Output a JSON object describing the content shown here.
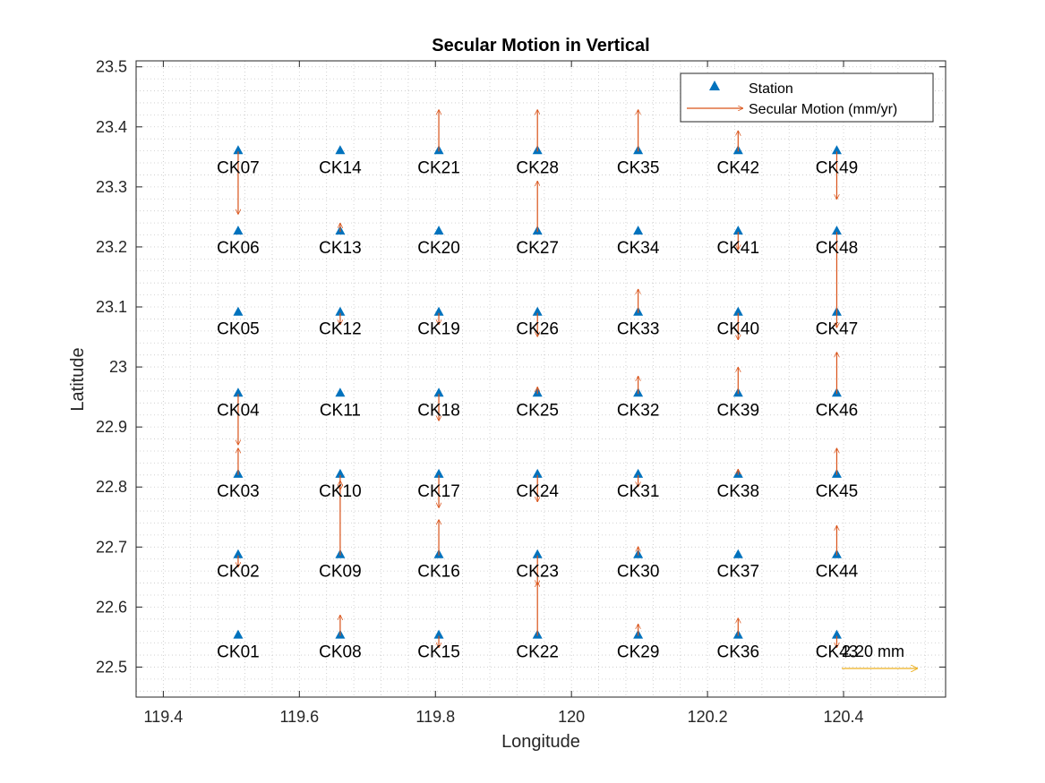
{
  "chart_data": {
    "type": "scatter",
    "title": "Secular Motion in Vertical",
    "xlabel": "Longitude",
    "ylabel": "Latitude",
    "xlim": [
      119.36,
      120.55
    ],
    "ylim": [
      22.45,
      23.51
    ],
    "xticks": [
      119.4,
      119.6,
      119.8,
      120,
      120.2,
      120.4
    ],
    "xtick_labels": [
      "119.4",
      "119.6",
      "119.8",
      "120",
      "120.2",
      "120.4"
    ],
    "yticks": [
      22.5,
      22.6,
      22.7,
      22.8,
      22.9,
      23,
      23.1,
      23.2,
      23.3,
      23.4,
      23.5
    ],
    "ytick_labels": [
      "22.5",
      "22.6",
      "22.7",
      "22.8",
      "22.9",
      "23",
      "23.1",
      "23.2",
      "23.3",
      "23.4",
      "23.5"
    ],
    "grid": "minor dotted",
    "legend": {
      "location": "top-right",
      "entries": [
        {
          "label": "Station",
          "marker": "triangle",
          "color": "#0072BD"
        },
        {
          "label": "Secular Motion (mm/yr)",
          "marker": "arrow",
          "color": "#D95319"
        }
      ]
    },
    "colors": {
      "station": "#0072BD",
      "arrow": "#D95319",
      "scale_arrow": "#EDB120"
    },
    "scale_arrow": {
      "label": "2.20 mm",
      "lon": 120.39,
      "lat": 22.45,
      "length_deg": 0.115
    },
    "stations": [
      {
        "name": "CK01",
        "lon": 119.51,
        "lat": 22.552,
        "dlat": 0
      },
      {
        "name": "CK02",
        "lon": 119.51,
        "lat": 22.686,
        "dlat": -0.02
      },
      {
        "name": "CK03",
        "lon": 119.51,
        "lat": 22.82,
        "dlat": 0.045
      },
      {
        "name": "CK04",
        "lon": 119.51,
        "lat": 22.955,
        "dlat": -0.085
      },
      {
        "name": "CK05",
        "lon": 119.51,
        "lat": 23.09,
        "dlat": 0
      },
      {
        "name": "CK06",
        "lon": 119.51,
        "lat": 23.225,
        "dlat": 0
      },
      {
        "name": "CK07",
        "lon": 119.51,
        "lat": 23.359,
        "dlat": -0.105
      },
      {
        "name": "CK08",
        "lon": 119.66,
        "lat": 22.552,
        "dlat": 0.035
      },
      {
        "name": "CK09",
        "lon": 119.66,
        "lat": 22.686,
        "dlat": 0.125
      },
      {
        "name": "CK10",
        "lon": 119.66,
        "lat": 22.82,
        "dlat": -0.025
      },
      {
        "name": "CK11",
        "lon": 119.66,
        "lat": 22.955,
        "dlat": 0
      },
      {
        "name": "CK12",
        "lon": 119.66,
        "lat": 23.09,
        "dlat": -0.02
      },
      {
        "name": "CK13",
        "lon": 119.66,
        "lat": 23.225,
        "dlat": 0.015
      },
      {
        "name": "CK14",
        "lon": 119.66,
        "lat": 23.359,
        "dlat": 0
      },
      {
        "name": "CK15",
        "lon": 119.805,
        "lat": 22.552,
        "dlat": -0.02
      },
      {
        "name": "CK16",
        "lon": 119.805,
        "lat": 22.686,
        "dlat": 0.06
      },
      {
        "name": "CK17",
        "lon": 119.805,
        "lat": 22.82,
        "dlat": -0.055
      },
      {
        "name": "CK18",
        "lon": 119.805,
        "lat": 22.955,
        "dlat": -0.045
      },
      {
        "name": "CK19",
        "lon": 119.805,
        "lat": 23.09,
        "dlat": -0.02
      },
      {
        "name": "CK20",
        "lon": 119.805,
        "lat": 23.225,
        "dlat": 0
      },
      {
        "name": "CK21",
        "lon": 119.805,
        "lat": 23.359,
        "dlat": 0.07
      },
      {
        "name": "CK22",
        "lon": 119.95,
        "lat": 22.552,
        "dlat": 0.09
      },
      {
        "name": "CK23",
        "lon": 119.95,
        "lat": 22.686,
        "dlat": -0.05
      },
      {
        "name": "CK24",
        "lon": 119.95,
        "lat": 22.82,
        "dlat": -0.045
      },
      {
        "name": "CK25",
        "lon": 119.95,
        "lat": 22.955,
        "dlat": 0.012
      },
      {
        "name": "CK26",
        "lon": 119.95,
        "lat": 23.09,
        "dlat": -0.04
      },
      {
        "name": "CK27",
        "lon": 119.95,
        "lat": 23.225,
        "dlat": 0.085
      },
      {
        "name": "CK28",
        "lon": 119.95,
        "lat": 23.359,
        "dlat": 0.07
      },
      {
        "name": "CK29",
        "lon": 120.098,
        "lat": 22.552,
        "dlat": 0.02
      },
      {
        "name": "CK30",
        "lon": 120.098,
        "lat": 22.686,
        "dlat": 0.015
      },
      {
        "name": "CK31",
        "lon": 120.098,
        "lat": 22.82,
        "dlat": -0.02
      },
      {
        "name": "CK32",
        "lon": 120.098,
        "lat": 22.955,
        "dlat": 0.03
      },
      {
        "name": "CK33",
        "lon": 120.098,
        "lat": 23.09,
        "dlat": 0.04
      },
      {
        "name": "CK34",
        "lon": 120.098,
        "lat": 23.225,
        "dlat": 0
      },
      {
        "name": "CK35",
        "lon": 120.098,
        "lat": 23.359,
        "dlat": 0.07
      },
      {
        "name": "CK36",
        "lon": 120.245,
        "lat": 22.552,
        "dlat": 0.03
      },
      {
        "name": "CK37",
        "lon": 120.245,
        "lat": 22.686,
        "dlat": 0
      },
      {
        "name": "CK38",
        "lon": 120.245,
        "lat": 22.82,
        "dlat": 0.01
      },
      {
        "name": "CK39",
        "lon": 120.245,
        "lat": 22.955,
        "dlat": 0.045
      },
      {
        "name": "CK40",
        "lon": 120.245,
        "lat": 23.09,
        "dlat": -0.045
      },
      {
        "name": "CK41",
        "lon": 120.245,
        "lat": 23.225,
        "dlat": -0.03
      },
      {
        "name": "CK42",
        "lon": 120.245,
        "lat": 23.359,
        "dlat": 0.035
      },
      {
        "name": "CK43",
        "lon": 120.39,
        "lat": 22.552,
        "dlat": -0.02
      },
      {
        "name": "CK44",
        "lon": 120.39,
        "lat": 22.686,
        "dlat": 0.05
      },
      {
        "name": "CK45",
        "lon": 120.39,
        "lat": 22.82,
        "dlat": 0.045
      },
      {
        "name": "CK46",
        "lon": 120.39,
        "lat": 22.955,
        "dlat": 0.07
      },
      {
        "name": "CK47",
        "lon": 120.39,
        "lat": 23.09,
        "dlat": 0
      },
      {
        "name": "CK48",
        "lon": 120.39,
        "lat": 23.225,
        "dlat": -0.16
      },
      {
        "name": "CK49",
        "lon": 120.39,
        "lat": 23.359,
        "dlat": -0.08
      }
    ]
  }
}
